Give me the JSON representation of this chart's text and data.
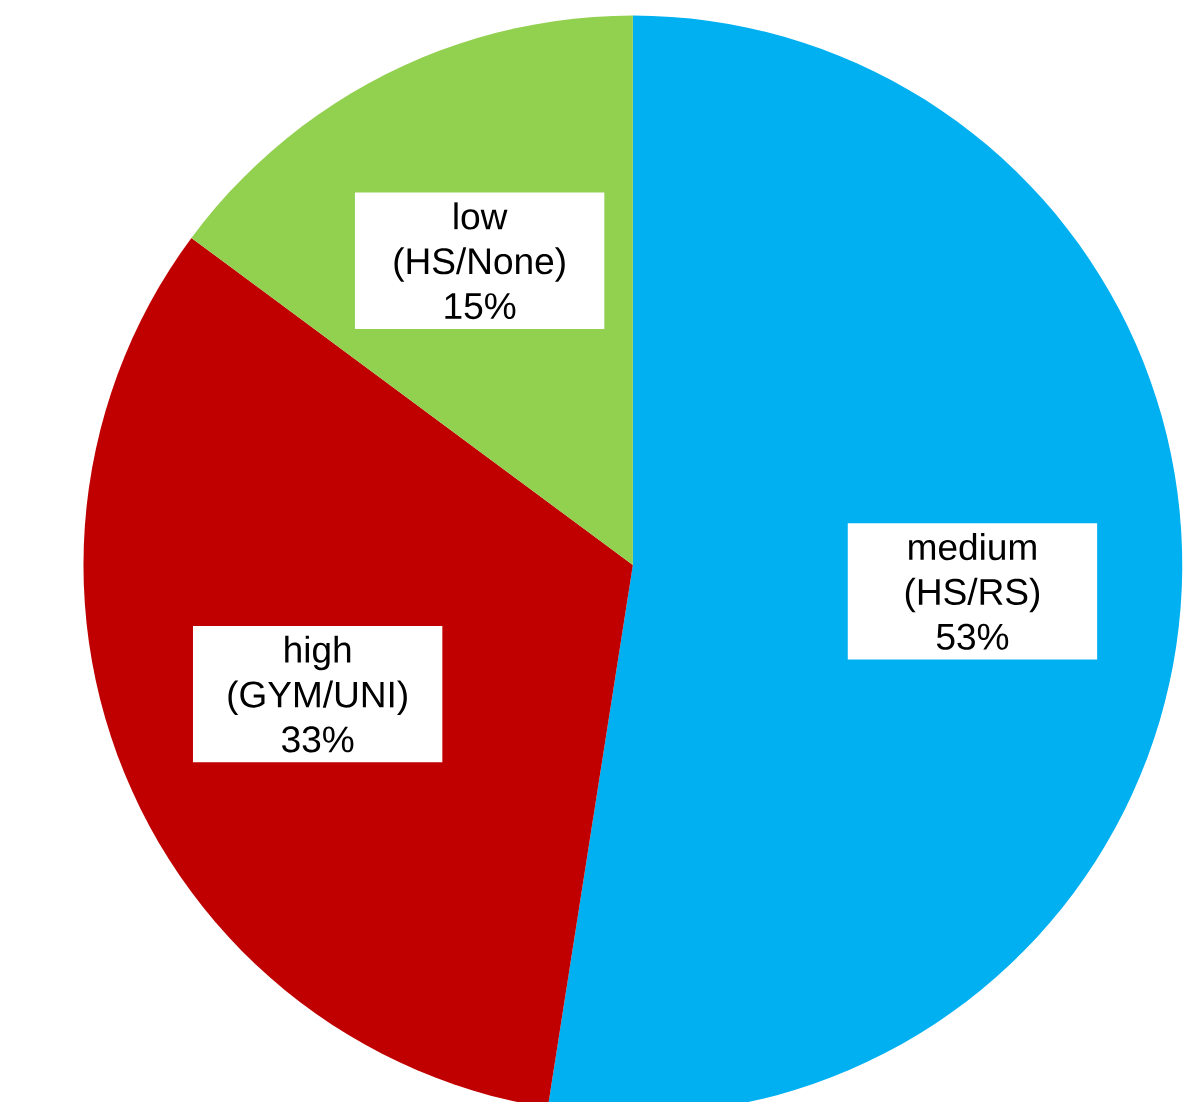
{
  "chart_data": {
    "type": "pie",
    "categories": [
      "medium (HS/RS)",
      "high (GYM/UNI)",
      "low (HS/None)"
    ],
    "values": [
      53,
      33,
      15
    ],
    "colors": [
      "#00b0f0",
      "#c00000",
      "#92d050"
    ],
    "value_labels": [
      "53%",
      "33%",
      "15%"
    ]
  }
}
